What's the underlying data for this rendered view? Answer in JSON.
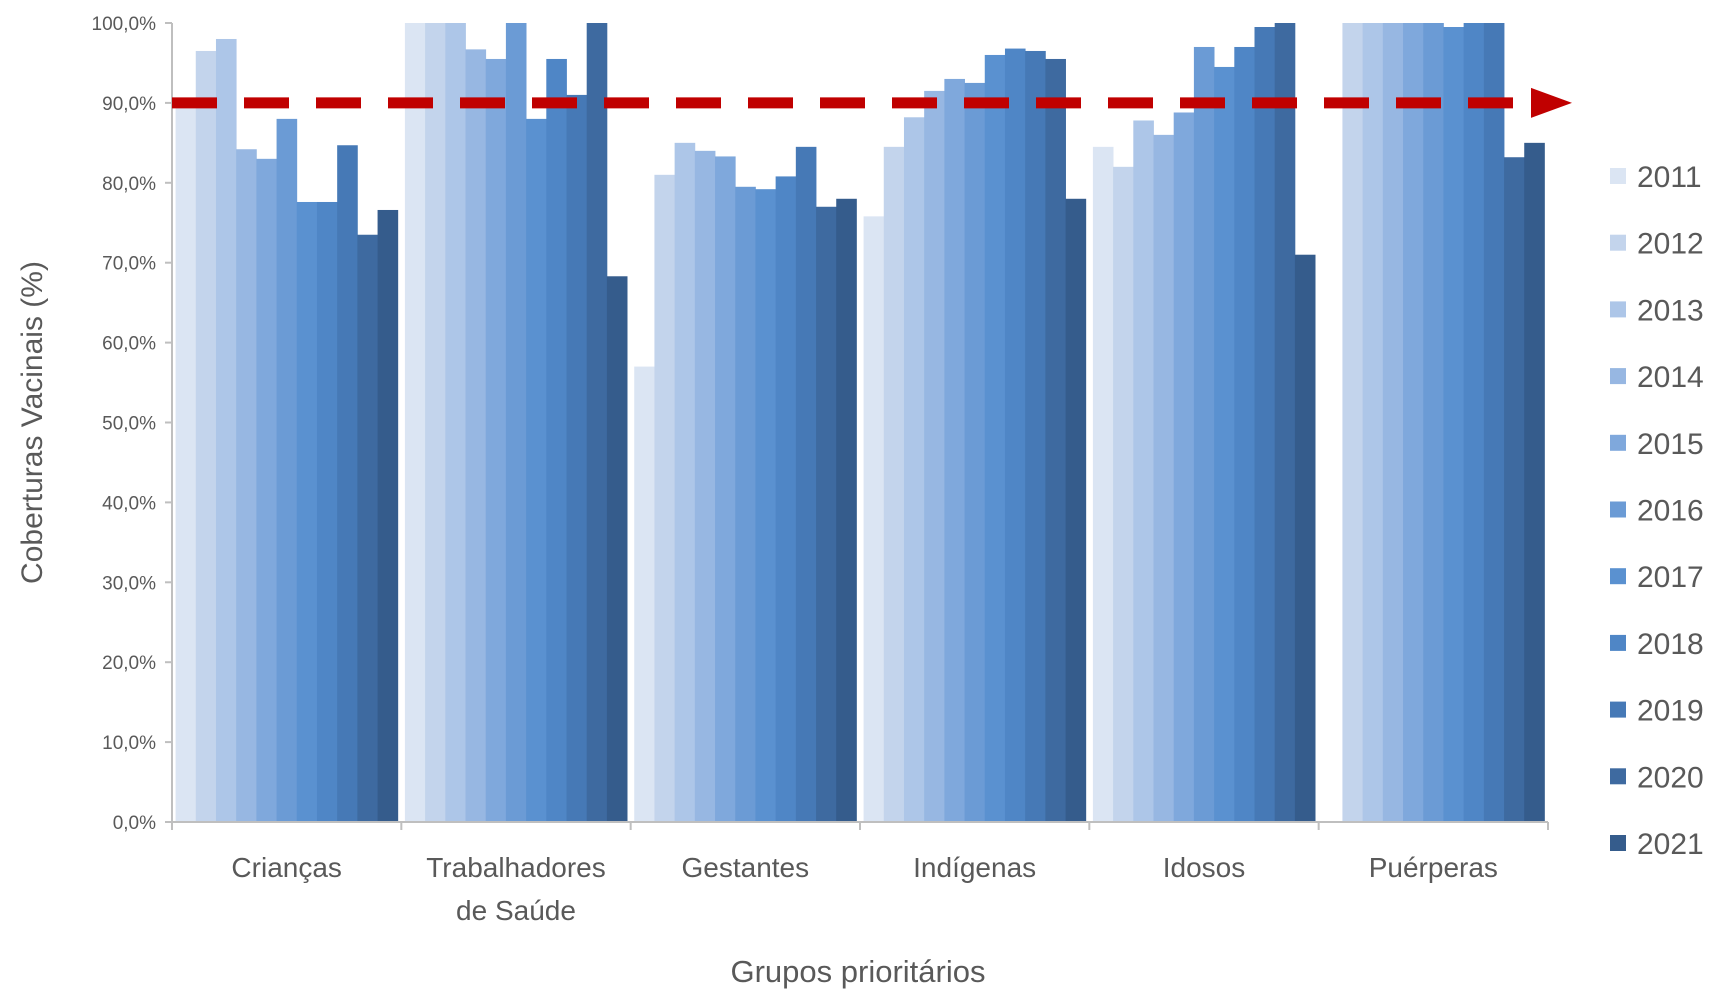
{
  "chart_data": {
    "type": "bar",
    "title": "",
    "xlabel": "Grupos prioritários",
    "ylabel": "Coberturas Vacinais (%)",
    "ylim": [
      0,
      100
    ],
    "ytick_step": 10,
    "ytick_labels": [
      "0,0%",
      "10,0%",
      "20,0%",
      "30,0%",
      "40,0%",
      "50,0%",
      "60,0%",
      "70,0%",
      "80,0%",
      "90,0%",
      "100,0%"
    ],
    "categories": [
      "Crianças",
      "Trabalhadores de Saúde",
      "Gestantes",
      "Indígenas",
      "Idosos",
      "Puérperas"
    ],
    "category_label_lines": [
      [
        "Crianças"
      ],
      [
        "Trabalhadores",
        "de Saúde"
      ],
      [
        "Gestantes"
      ],
      [
        "Indígenas"
      ],
      [
        "Idosos"
      ],
      [
        "Puérperas"
      ]
    ],
    "series": [
      {
        "name": "2011",
        "color": "#dbe5f3",
        "values": [
          90.5,
          100,
          57.0,
          75.8,
          84.5,
          0
        ]
      },
      {
        "name": "2012",
        "color": "#c3d4ec",
        "values": [
          96.5,
          100,
          81.0,
          84.5,
          82.0,
          100
        ]
      },
      {
        "name": "2013",
        "color": "#adc6e8",
        "values": [
          98.0,
          100,
          85.0,
          88.2,
          87.8,
          100
        ]
      },
      {
        "name": "2014",
        "color": "#97b7e2",
        "values": [
          84.2,
          96.7,
          84.0,
          91.5,
          86.0,
          100
        ]
      },
      {
        "name": "2015",
        "color": "#7fa8dc",
        "values": [
          83.0,
          95.5,
          83.3,
          93.0,
          88.8,
          100
        ]
      },
      {
        "name": "2016",
        "color": "#6b9bd5",
        "values": [
          88.0,
          100,
          79.5,
          92.5,
          97.0,
          100
        ]
      },
      {
        "name": "2017",
        "color": "#5a91d0",
        "values": [
          77.6,
          88.0,
          79.2,
          96.0,
          94.5,
          99.5
        ]
      },
      {
        "name": "2018",
        "color": "#4f86c6",
        "values": [
          77.6,
          95.5,
          80.8,
          96.8,
          97.0,
          100
        ]
      },
      {
        "name": "2019",
        "color": "#4679b6",
        "values": [
          84.7,
          91.0,
          84.5,
          96.5,
          99.5,
          100
        ]
      },
      {
        "name": "2020",
        "color": "#3e6aa0",
        "values": [
          73.5,
          100,
          77.0,
          95.5,
          100,
          83.2
        ]
      },
      {
        "name": "2021",
        "color": "#355c8c",
        "values": [
          76.6,
          68.3,
          78.0,
          78.0,
          71.0,
          85.0
        ]
      }
    ],
    "reference_line": {
      "value": 90,
      "color": "#c00000",
      "style": "dashed-arrow"
    },
    "legend": {
      "position": "right"
    },
    "grid": false
  }
}
